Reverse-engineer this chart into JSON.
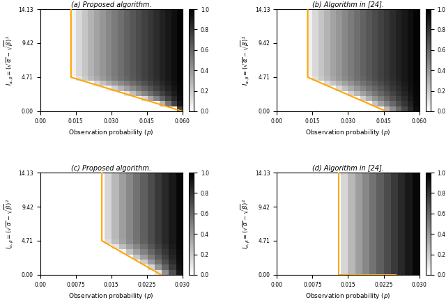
{
  "subplots": [
    {
      "title": "(a) Proposed algorithm.",
      "xlim": [
        0.0,
        0.06
      ],
      "ylim": [
        0.0,
        14.13
      ],
      "xticks": [
        0.0,
        0.015,
        0.03,
        0.045,
        0.06
      ],
      "yticks": [
        0.0,
        4.71,
        9.42,
        14.13
      ],
      "xticklabels": [
        "0.00",
        "0.015",
        "0.030",
        "0.045",
        "0.060"
      ],
      "yticklabels": [
        "0.00",
        "4.71",
        "9.42",
        "14.13"
      ],
      "bx": [
        0.013,
        0.013,
        0.06
      ],
      "by": [
        14.13,
        4.71,
        0.0
      ],
      "nx": 24,
      "ny": 20
    },
    {
      "title": "(b) Algorithm in [24].",
      "xlim": [
        0.0,
        0.06
      ],
      "ylim": [
        0.0,
        14.13
      ],
      "xticks": [
        0.0,
        0.015,
        0.03,
        0.045,
        0.06
      ],
      "yticks": [
        0.0,
        4.71,
        9.42,
        14.13
      ],
      "xticklabels": [
        "0.00",
        "0.015",
        "0.030",
        "0.045",
        "0.060"
      ],
      "yticklabels": [
        "0.00",
        "4.71",
        "9.42",
        "14.13"
      ],
      "bx": [
        0.013,
        0.013,
        0.046
      ],
      "by": [
        14.13,
        4.71,
        0.0
      ],
      "nx": 24,
      "ny": 20
    },
    {
      "title": "(c) Proposed algorithm.",
      "xlim": [
        0.0,
        0.03
      ],
      "ylim": [
        0.0,
        14.13
      ],
      "xticks": [
        0.0,
        0.0075,
        0.015,
        0.0225,
        0.03
      ],
      "yticks": [
        0.0,
        4.71,
        9.42,
        14.13
      ],
      "xticklabels": [
        "0.00",
        "0.0075",
        "0.015",
        "0.0225",
        "0.030"
      ],
      "yticklabels": [
        "0.00",
        "4.71",
        "9.42",
        "14.13"
      ],
      "bx": [
        0.013,
        0.013,
        0.0255
      ],
      "by": [
        14.13,
        4.71,
        0.0
      ],
      "nx": 20,
      "ny": 20
    },
    {
      "title": "(d) Algorithm in [24].",
      "xlim": [
        0.0,
        0.03
      ],
      "ylim": [
        0.0,
        14.13
      ],
      "xticks": [
        0.0,
        0.0075,
        0.015,
        0.0225,
        0.03
      ],
      "yticks": [
        0.0,
        4.71,
        9.42,
        14.13
      ],
      "xticklabels": [
        "0.00",
        "0.0075",
        "0.015",
        "0.0225",
        "0.030"
      ],
      "yticklabels": [
        "0.00",
        "4.71",
        "9.42",
        "14.13"
      ],
      "bx": [
        0.013,
        0.013,
        0.025
      ],
      "by": [
        14.13,
        0.0,
        0.0
      ],
      "nx": 20,
      "ny": 20
    }
  ],
  "xlabel": "Observation probability $(p)$",
  "ylabel": "$I_{\\alpha,\\beta} = (\\sqrt{\\alpha} - \\sqrt{\\beta})^2$",
  "colorbar_ticks": [
    0.0,
    0.2,
    0.4,
    0.6,
    0.8,
    1.0
  ],
  "orange_color": "#FFA500",
  "figure_bg": "#ffffff"
}
